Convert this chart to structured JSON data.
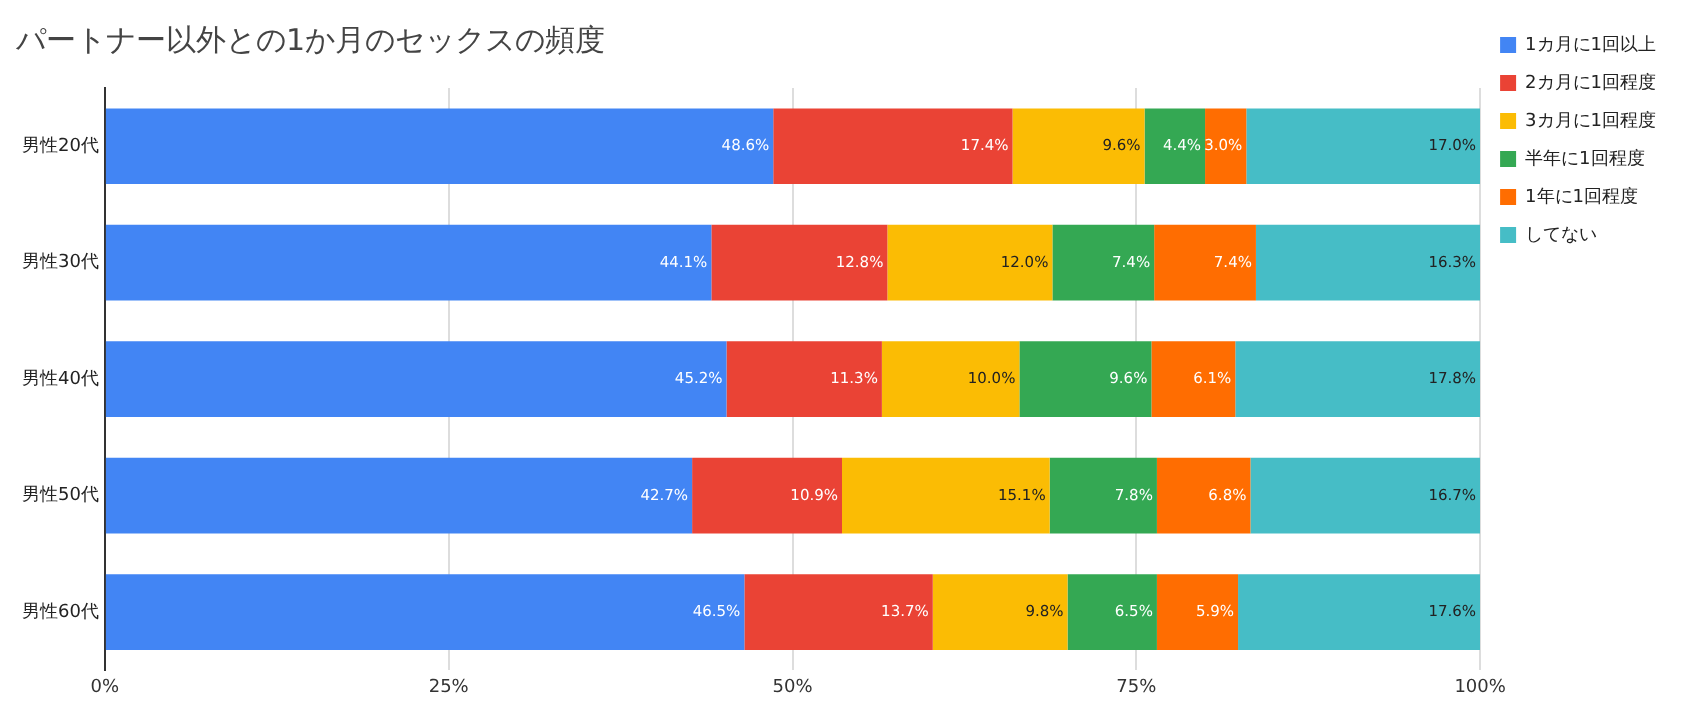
{
  "chart_data": {
    "type": "bar",
    "orientation": "horizontal",
    "stacked": true,
    "title": "パートナー以外との1か月のセックスの頻度",
    "categories": [
      "男性20代",
      "男性30代",
      "男性40代",
      "男性50代",
      "男性60代"
    ],
    "series": [
      {
        "name": "1カ月に1回以上",
        "color": "#4285f4",
        "values": [
          48.6,
          44.1,
          45.2,
          42.7,
          46.5
        ],
        "value_labels": [
          "48.6%",
          "44.1%",
          "45.2%",
          "42.7%",
          "46.5%"
        ]
      },
      {
        "name": "2カ月に1回程度",
        "color": "#ea4335",
        "values": [
          17.4,
          12.8,
          11.3,
          10.9,
          13.7
        ],
        "value_labels": [
          "17.4%",
          "12.8%",
          "11.3%",
          "10.9%",
          "13.7%"
        ]
      },
      {
        "name": "3カ月に1回程度",
        "color": "#fbbc04",
        "values": [
          9.6,
          12.0,
          10.0,
          15.1,
          9.8
        ],
        "value_labels": [
          "9.6%",
          "12.0%",
          "10.0%",
          "15.1%",
          "9.8%"
        ]
      },
      {
        "name": "半年に1回程度",
        "color": "#34a853",
        "values": [
          4.4,
          7.4,
          9.6,
          7.8,
          6.5
        ],
        "value_labels": [
          "4.4%",
          "7.4%",
          "9.6%",
          "7.8%",
          "6.5%"
        ]
      },
      {
        "name": "1年に1回程度",
        "color": "#ff6d01",
        "values": [
          3.0,
          7.4,
          6.1,
          6.8,
          5.9
        ],
        "value_labels": [
          "3.0%",
          "7.4%",
          "6.1%",
          "6.8%",
          "5.9%"
        ]
      },
      {
        "name": "してない",
        "color": "#46bdc6",
        "values": [
          17.0,
          16.3,
          17.8,
          16.7,
          17.6
        ],
        "value_labels": [
          "17.0%",
          "16.3%",
          "17.8%",
          "16.7%",
          "17.6%"
        ]
      }
    ],
    "xlim": [
      0,
      100
    ],
    "xticks": [
      {
        "value": 0,
        "label": "0%"
      },
      {
        "value": 25,
        "label": "25%"
      },
      {
        "value": 50,
        "label": "50%"
      },
      {
        "value": 75,
        "label": "75%"
      },
      {
        "value": 100,
        "label": "100%"
      }
    ],
    "grid": "x",
    "legend": "top right"
  }
}
